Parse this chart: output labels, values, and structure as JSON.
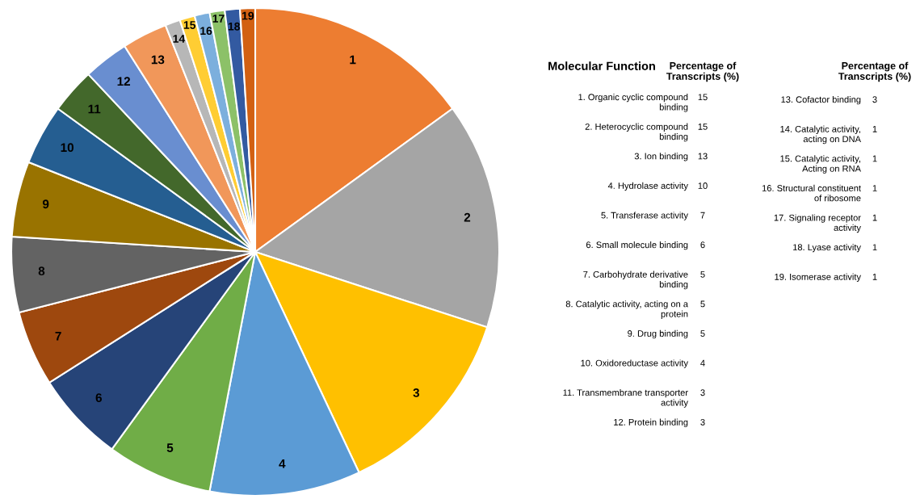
{
  "chart_data": [
    {
      "type": "pie",
      "categories": [
        "1",
        "2",
        "3",
        "4",
        "5",
        "6",
        "7",
        "8",
        "9",
        "10",
        "11",
        "12",
        "13",
        "14",
        "15",
        "16",
        "17",
        "18",
        "19"
      ],
      "values": [
        15,
        15,
        13,
        10,
        7,
        6,
        5,
        5,
        5,
        4,
        3,
        3,
        3,
        1,
        1,
        1,
        1,
        1,
        1
      ],
      "colors": [
        "#ed7d31",
        "#a5a5a5",
        "#ffc000",
        "#5b9bd5",
        "#70ad47",
        "#264478",
        "#9e480e",
        "#636363",
        "#997300",
        "#255e91",
        "#43682b",
        "#698ed0",
        "#f1975a",
        "#b7b7b7",
        "#ffcd33",
        "#7cafdd",
        "#8cc168",
        "#335aa1",
        "#d26012"
      ]
    },
    {
      "type": "other",
      "annotations": [
        "Molecular Function",
        "Percentage of Transcripts (%)",
        "Percentage of Transcripts (%)"
      ],
      "categories": [
        "1. Organic cyclic compound binding",
        "2. Heterocyclic compound binding",
        "3. Ion binding",
        "4. Hydrolase activity",
        "5. Transferase activity",
        "6. Small molecule binding",
        "7. Carbohydrate derivative binding",
        "8. Catalytic activity, acting on a protein",
        "9. Drug binding",
        "10. Oxidoreductase activity",
        "11. Transmembrane transporter activity",
        "12. Protein binding",
        "13. Cofactor binding",
        "14. Catalytic activity, acting on DNA",
        "15. Catalytic activity, Acting on RNA",
        "16. Structural constituent of ribosome",
        "17. Signaling receptor activity",
        "18. Lyase activity",
        "19. Isomerase activity"
      ],
      "values": [
        15,
        15,
        13,
        10,
        7,
        6,
        5,
        5,
        5,
        4,
        3,
        3,
        3,
        1,
        1,
        1,
        1,
        1,
        1
      ],
      "data_labels": true
    }
  ]
}
